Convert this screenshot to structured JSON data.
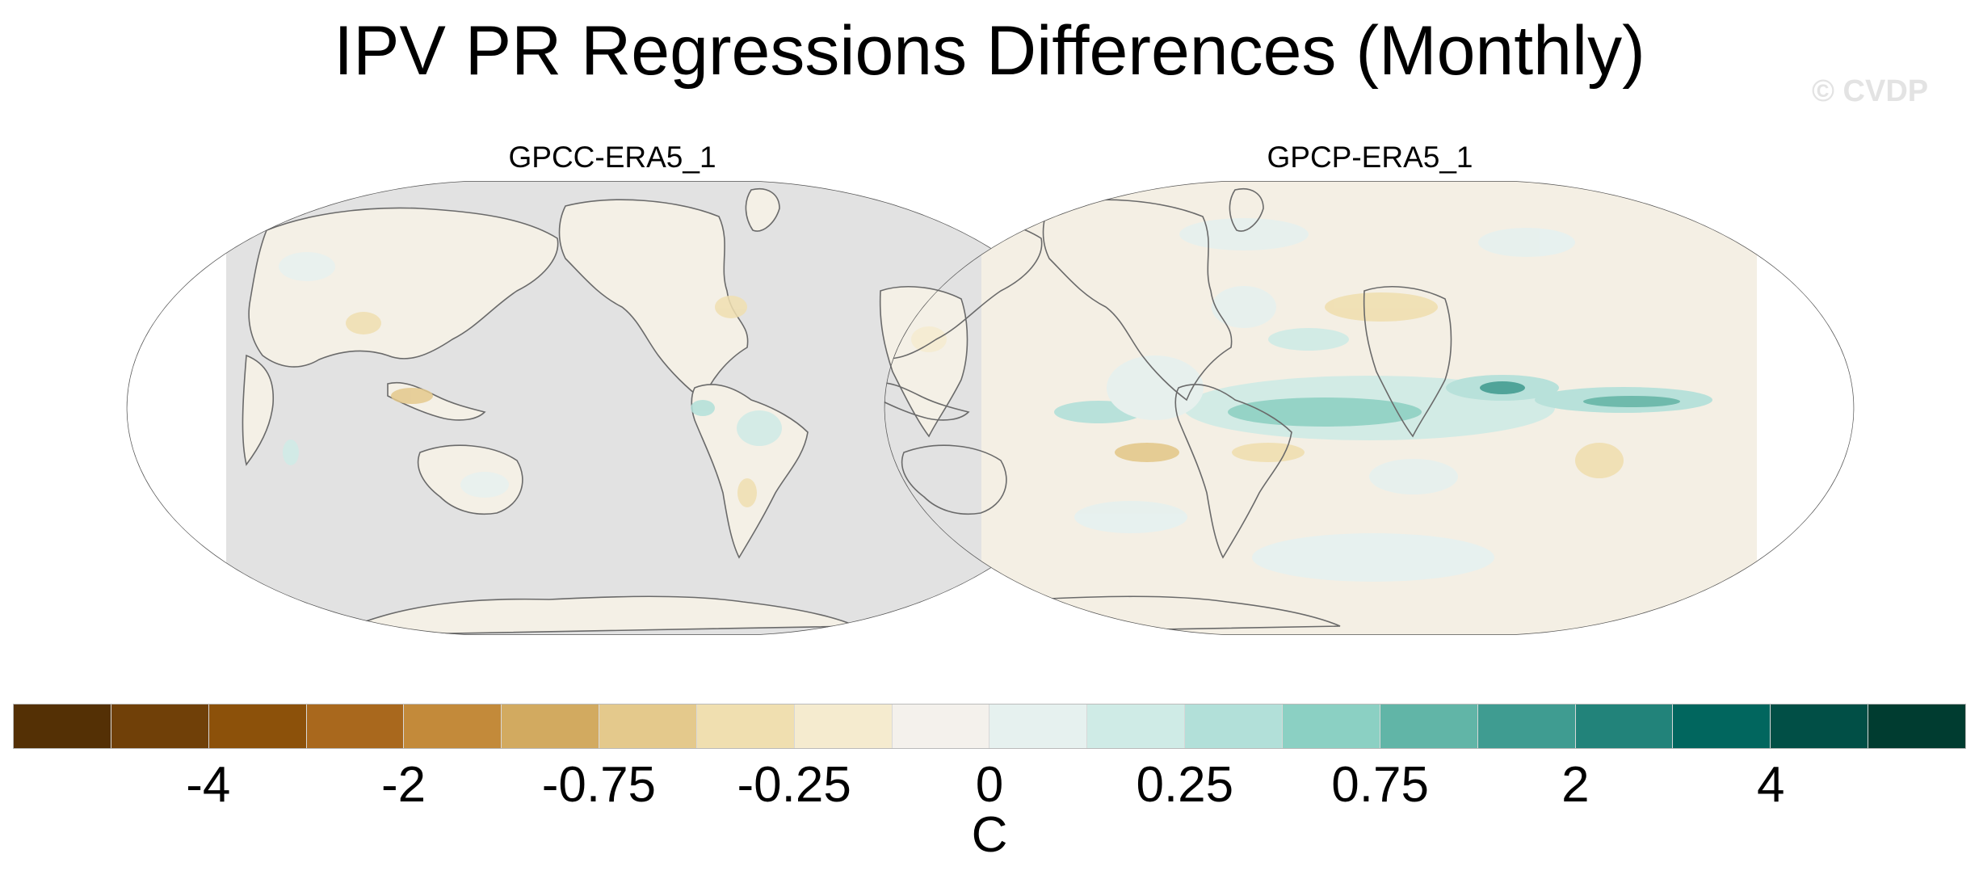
{
  "figure": {
    "title": "IPV PR Regressions Differences (Monthly)",
    "watermark": "© CVDP"
  },
  "panels": [
    {
      "title": "GPCC-ERA5_1",
      "ocean_color": "#e2e2e2",
      "description": "land-only dataset"
    },
    {
      "title": "GPCP-ERA5_1",
      "ocean_color": "#f4efe4",
      "description": "global dataset"
    }
  ],
  "colorbar": {
    "units": "C",
    "tick_labels": [
      "-4",
      "-2",
      "-0.75",
      "-0.25",
      "0",
      "0.25",
      "0.75",
      "2",
      "4"
    ],
    "colors": [
      "#543005",
      "#704008",
      "#8c510a",
      "#a9681d",
      "#c38a3a",
      "#d2aa60",
      "#e4c98c",
      "#f0dfb0",
      "#f5ebcf",
      "#f4f1ec",
      "#e6f1ef",
      "#cfebe6",
      "#b2e0d9",
      "#8bd0c3",
      "#61b5a7",
      "#3f9c91",
      "#22837a",
      "#01665e",
      "#014f46",
      "#003c30"
    ]
  }
}
